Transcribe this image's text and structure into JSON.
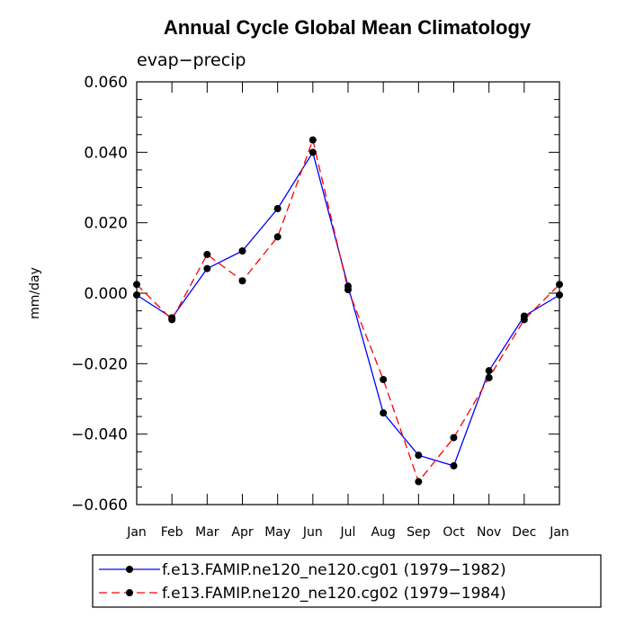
{
  "chart_data": {
    "type": "line",
    "title": "Annual Cycle Global Mean Climatology",
    "subtitle": "evap−precip",
    "xlabel": "",
    "ylabel": "mm/day",
    "categories": [
      "Jan",
      "Feb",
      "Mar",
      "Apr",
      "May",
      "Jun",
      "Jul",
      "Aug",
      "Sep",
      "Oct",
      "Nov",
      "Dec",
      "Jan"
    ],
    "ylim": [
      -0.06,
      0.06
    ],
    "yticks": [
      -0.06,
      -0.04,
      -0.02,
      0.0,
      0.02,
      0.04,
      0.06
    ],
    "ytick_labels": [
      "−0.060",
      "−0.040",
      "−0.020",
      "0.000",
      "0.020",
      "0.040",
      "0.060"
    ],
    "grid": false,
    "legend_position": "bottom",
    "series": [
      {
        "name": "f.e13.FAMIP.ne120_ne120.cg01 (1979−1982)",
        "color": "#0000ff",
        "dash": "solid",
        "marker": "filled-circle",
        "values": [
          -0.0005,
          -0.007,
          0.007,
          0.012,
          0.024,
          0.04,
          0.002,
          -0.034,
          -0.046,
          -0.049,
          -0.022,
          -0.0065,
          -0.0005
        ]
      },
      {
        "name": "f.e13.FAMIP.ne120_ne120.cg02 (1979−1984)",
        "color": "#ff0000",
        "dash": "dashed",
        "marker": "filled-circle",
        "values": [
          0.0025,
          -0.0075,
          0.011,
          0.0035,
          0.016,
          0.0435,
          0.001,
          -0.0245,
          -0.0535,
          -0.041,
          -0.024,
          -0.0075,
          0.0025
        ]
      }
    ]
  }
}
